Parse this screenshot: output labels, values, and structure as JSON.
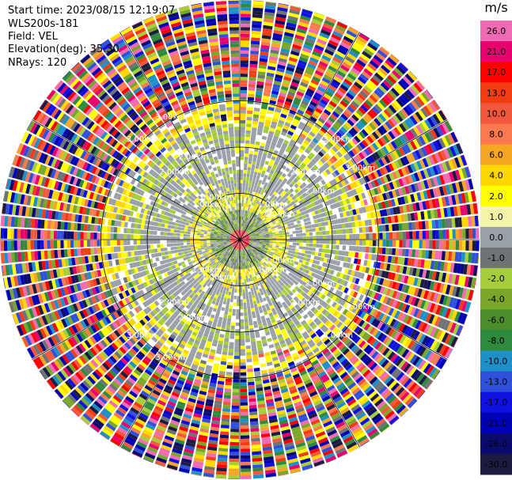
{
  "info": {
    "start_time": "Start time: 2023/08/15 12:19:07",
    "instrument": "WLS200s-181",
    "field": "Field: VEL",
    "elevation": "Elevation(deg): 35.30",
    "nrays": "NRays: 120"
  },
  "chart_data": {
    "type": "heatmap",
    "projection": "polar-ppi",
    "field": "VEL",
    "rays": 120,
    "range_rings_km": [
      1.0,
      2.0,
      3.0
    ],
    "ring_labels": [
      "1.00km",
      "2.00km",
      "3.00km"
    ],
    "spokes": 12,
    "colorbar": {
      "unit": "m/s",
      "ticks": [
        "26.0",
        "21.0",
        "17.0",
        "13.0",
        "10.0",
        "8.0",
        "6.0",
        "4.0",
        "2.0",
        "1.0",
        "0.0",
        "-1.0",
        "-2.0",
        "-4.0",
        "-6.0",
        "-8.0",
        "-10.0",
        "-13.0",
        "-17.0",
        "-21.0",
        "-26.0",
        "-30.0"
      ],
      "colors": [
        "#f06bb4",
        "#e8006e",
        "#ff0000",
        "#f23c14",
        "#f2583c",
        "#fa7a50",
        "#f5a623",
        "#ffd700",
        "#ffff00",
        "#f5f5aa",
        "#9aa0a8",
        "#6e7376",
        "#a6ce39",
        "#7aa62a",
        "#4c8c2b",
        "#2e8b3e",
        "#1e90c8",
        "#3050dc",
        "#1010e0",
        "#0000b4",
        "#0a0a6e",
        "#1c1c40"
      ]
    }
  }
}
